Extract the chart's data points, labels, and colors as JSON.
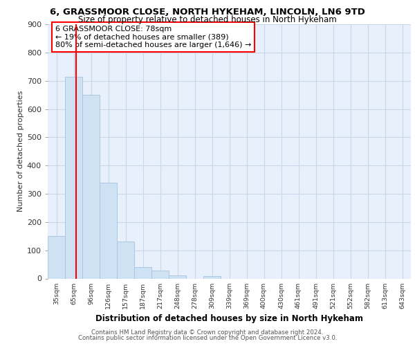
{
  "title1": "6, GRASSMOOR CLOSE, NORTH HYKEHAM, LINCOLN, LN6 9TD",
  "title2": "Size of property relative to detached houses in North Hykeham",
  "xlabel": "Distribution of detached houses by size in North Hykeham",
  "ylabel": "Number of detached properties",
  "bar_labels": [
    "35sqm",
    "65sqm",
    "96sqm",
    "126sqm",
    "157sqm",
    "187sqm",
    "217sqm",
    "248sqm",
    "278sqm",
    "309sqm",
    "339sqm",
    "369sqm",
    "400sqm",
    "430sqm",
    "461sqm",
    "491sqm",
    "521sqm",
    "552sqm",
    "582sqm",
    "613sqm",
    "643sqm"
  ],
  "bar_values": [
    150,
    715,
    650,
    340,
    130,
    40,
    27,
    10,
    0,
    8,
    0,
    0,
    0,
    0,
    0,
    0,
    0,
    0,
    0,
    0,
    0
  ],
  "bar_color": "#cfe2f3",
  "bar_edge_color": "#a4c2e0",
  "grid_color": "#c8d8ea",
  "background_color": "#e8f0fb",
  "red_line_x": 1.13,
  "annotation_text": "6 GRASSMOOR CLOSE: 78sqm\n← 19% of detached houses are smaller (389)\n80% of semi-detached houses are larger (1,646) →",
  "annotation_box_color": "white",
  "annotation_box_edge": "red",
  "ylim": [
    0,
    900
  ],
  "yticks": [
    0,
    100,
    200,
    300,
    400,
    500,
    600,
    700,
    800,
    900
  ],
  "footer1": "Contains HM Land Registry data © Crown copyright and database right 2024.",
  "footer2": "Contains public sector information licensed under the Open Government Licence v3.0."
}
